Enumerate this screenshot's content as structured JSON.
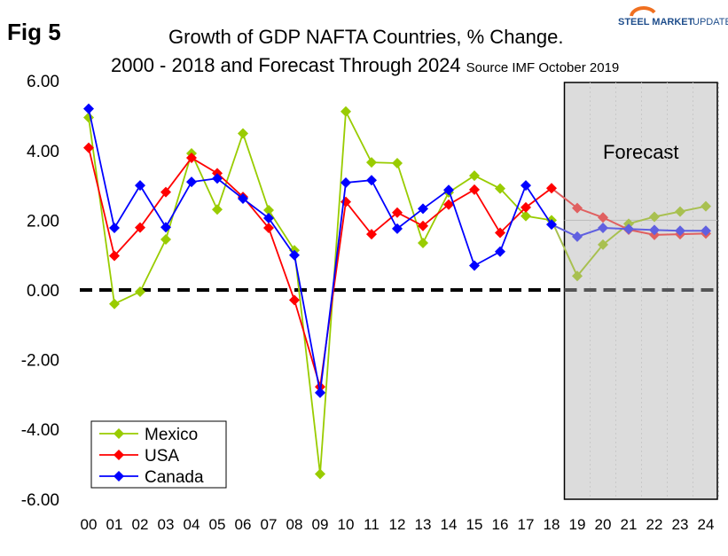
{
  "figure_label": "Fig 5",
  "logo": {
    "text_bold": "STEEL MARKET",
    "text_light": "UPDATE"
  },
  "chart_data": {
    "type": "line",
    "title_line1": "Growth of GDP NAFTA Countries, % Change.",
    "title_line2": "2000 - 2018 and Forecast Through 2024",
    "source": "Source IMF October 2019",
    "forecast_label": "Forecast",
    "forecast_start_index": 18,
    "categories": [
      "00",
      "01",
      "02",
      "03",
      "04",
      "05",
      "06",
      "07",
      "08",
      "09",
      "10",
      "11",
      "12",
      "13",
      "14",
      "15",
      "16",
      "17",
      "18",
      "19",
      "20",
      "21",
      "22",
      "23",
      "24"
    ],
    "ylim": [
      -6,
      6
    ],
    "yticks": [
      "6.00",
      "4.00",
      "2.00",
      "0.00",
      "-2.00",
      "-4.00",
      "-6.00"
    ],
    "ytick_values": [
      6,
      4,
      2,
      0,
      -2,
      -4,
      -6
    ],
    "legend_position": "bottom-left",
    "series": [
      {
        "name": "Mexico",
        "color": "#99cc00",
        "forecast_color": "#a8c050",
        "values": [
          4.95,
          -0.4,
          -0.05,
          1.45,
          3.92,
          2.31,
          4.49,
          2.29,
          1.14,
          -5.28,
          5.12,
          3.66,
          3.64,
          1.35,
          2.8,
          3.28,
          2.91,
          2.12,
          2.0,
          0.4,
          1.3,
          1.9,
          2.1,
          2.25,
          2.4
        ]
      },
      {
        "name": "USA",
        "color": "#ff0000",
        "forecast_color": "#e06060",
        "values": [
          4.08,
          0.98,
          1.79,
          2.81,
          3.79,
          3.35,
          2.67,
          1.78,
          -0.29,
          -2.78,
          2.53,
          1.6,
          2.22,
          1.84,
          2.45,
          2.88,
          1.64,
          2.37,
          2.92,
          2.35,
          2.08,
          1.73,
          1.58,
          1.6,
          1.62
        ]
      },
      {
        "name": "Canada",
        "color": "#0000ff",
        "forecast_color": "#6060e0",
        "values": [
          5.2,
          1.78,
          3.0,
          1.8,
          3.1,
          3.2,
          2.62,
          2.06,
          1.0,
          -2.95,
          3.08,
          3.15,
          1.76,
          2.33,
          2.87,
          0.7,
          1.1,
          3.0,
          1.88,
          1.53,
          1.78,
          1.75,
          1.72,
          1.7,
          1.7
        ]
      }
    ]
  }
}
